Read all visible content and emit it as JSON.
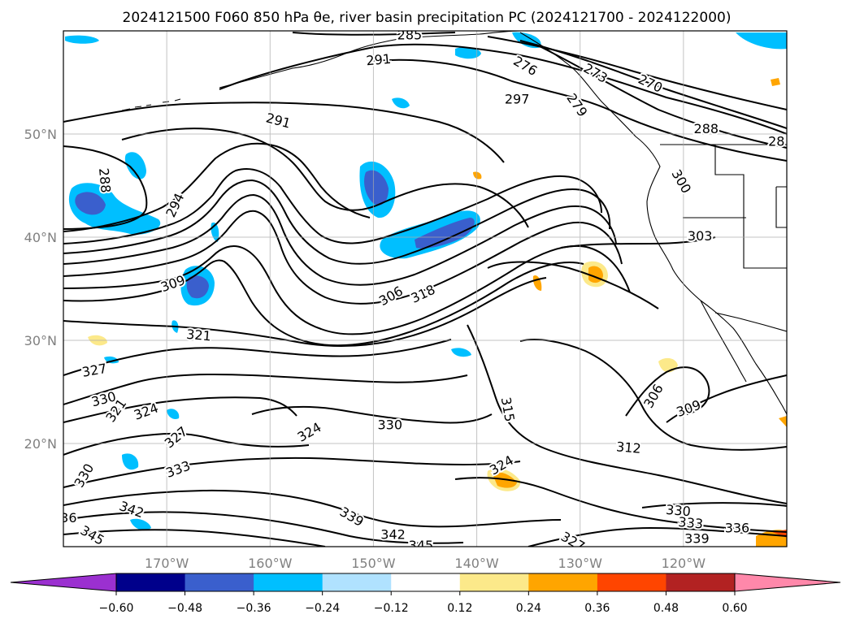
{
  "chart_data": {
    "type": "contour",
    "title": "2024121500 F060 850 hPa θe, river basin precipitation PC (2024121700 - 2024122000)",
    "map_extent": {
      "lon": [
        -180,
        -110
      ],
      "lat": [
        10,
        60
      ]
    },
    "x_ticks": [
      {
        "lon": -170,
        "label": "170°W"
      },
      {
        "lon": -160,
        "label": "160°W"
      },
      {
        "lon": -150,
        "label": "150°W"
      },
      {
        "lon": -140,
        "label": "140°W"
      },
      {
        "lon": -130,
        "label": "130°W"
      },
      {
        "lon": -120,
        "label": "120°W"
      }
    ],
    "y_ticks": [
      {
        "lat": 20,
        "label": "20°N"
      },
      {
        "lat": 30,
        "label": "30°N"
      },
      {
        "lat": 40,
        "label": "40°N"
      },
      {
        "lat": 50,
        "label": "50°N"
      }
    ],
    "grid": true,
    "colorbar": {
      "position": "bottom",
      "extend": "both",
      "levels": [
        -0.6,
        -0.48,
        -0.36,
        -0.24,
        -0.12,
        0.12,
        0.24,
        0.36,
        0.48,
        0.6
      ],
      "labels": [
        "−0.60",
        "−0.48",
        "−0.36",
        "−0.24",
        "−0.12",
        "0.12",
        "0.24",
        "0.36",
        "0.48",
        "0.60"
      ],
      "colors": [
        "#9b30d0",
        "#00008b",
        "#3a5fcd",
        "#00bfff",
        "#b0e2ff",
        "#ffffff",
        "#fce98a",
        "#ffa500",
        "#ff4500",
        "#b22222",
        "#ff88aa"
      ]
    },
    "contour_labels": [
      {
        "text": "285",
        "lon": -146.5,
        "lat": 59.6,
        "rot": 0
      },
      {
        "text": "291",
        "lon": -149.5,
        "lat": 57.2,
        "rot": -5
      },
      {
        "text": "276",
        "lon": -135.3,
        "lat": 56.6,
        "rot": 30
      },
      {
        "text": "273",
        "lon": -128.5,
        "lat": 55.9,
        "rot": 30
      },
      {
        "text": "270",
        "lon": -123.2,
        "lat": 54.9,
        "rot": 25
      },
      {
        "text": "279",
        "lon": -130.3,
        "lat": 52.8,
        "rot": 55
      },
      {
        "text": "297",
        "lon": -136.1,
        "lat": 53.4,
        "rot": 0
      },
      {
        "text": "291",
        "lon": -159.2,
        "lat": 51.3,
        "rot": 15
      },
      {
        "text": "288",
        "lon": -117.8,
        "lat": 50.5,
        "rot": 0
      },
      {
        "text": "28",
        "lon": -111,
        "lat": 49.3,
        "rot": 0
      },
      {
        "text": "288",
        "lon": -176,
        "lat": 45.5,
        "rot": 85
      },
      {
        "text": "294",
        "lon": -169.2,
        "lat": 43.1,
        "rot": -65
      },
      {
        "text": "300",
        "lon": -120.2,
        "lat": 45.4,
        "rot": 60
      },
      {
        "text": "303",
        "lon": -118.4,
        "lat": 40.1,
        "rot": 0
      },
      {
        "text": "309",
        "lon": -169.4,
        "lat": 35.5,
        "rot": -20
      },
      {
        "text": "306",
        "lon": -148.3,
        "lat": 34.3,
        "rot": -30
      },
      {
        "text": "318",
        "lon": -145.2,
        "lat": 34.5,
        "rot": -25
      },
      {
        "text": "321",
        "lon": -166.9,
        "lat": 30.5,
        "rot": 5
      },
      {
        "text": "327",
        "lon": -177,
        "lat": 27.1,
        "rot": -10
      },
      {
        "text": "330",
        "lon": -176.1,
        "lat": 24.3,
        "rot": -15
      },
      {
        "text": "321",
        "lon": -174.9,
        "lat": 23.2,
        "rot": -55
      },
      {
        "text": "324",
        "lon": -172,
        "lat": 23.1,
        "rot": -20
      },
      {
        "text": "306",
        "lon": -122.9,
        "lat": 24.6,
        "rot": -60
      },
      {
        "text": "309",
        "lon": -119.5,
        "lat": 23.4,
        "rot": -20
      },
      {
        "text": "315",
        "lon": -137,
        "lat": 23.3,
        "rot": 80
      },
      {
        "text": "330",
        "lon": -148.4,
        "lat": 21.8,
        "rot": 0
      },
      {
        "text": "324",
        "lon": -156.2,
        "lat": 21.1,
        "rot": -30
      },
      {
        "text": "327",
        "lon": -169.1,
        "lat": 20.6,
        "rot": -40
      },
      {
        "text": "312",
        "lon": -125.3,
        "lat": 19.6,
        "rot": 5
      },
      {
        "text": "330",
        "lon": -178,
        "lat": 16.9,
        "rot": -60
      },
      {
        "text": "333",
        "lon": -168.9,
        "lat": 17.5,
        "rot": -20
      },
      {
        "text": "324",
        "lon": -137.6,
        "lat": 17.9,
        "rot": -30
      },
      {
        "text": "342",
        "lon": -173.4,
        "lat": 13.6,
        "rot": 20
      },
      {
        "text": "339",
        "lon": -152.1,
        "lat": 12.9,
        "rot": 30
      },
      {
        "text": "330",
        "lon": -120.5,
        "lat": 13.5,
        "rot": 5
      },
      {
        "text": "333",
        "lon": -119.3,
        "lat": 12.3,
        "rot": 5
      },
      {
        "text": "336",
        "lon": -114.8,
        "lat": 11.8,
        "rot": 0
      },
      {
        "text": "342",
        "lon": -148.1,
        "lat": 11.2,
        "rot": 0
      },
      {
        "text": "339",
        "lon": -118.7,
        "lat": 10.8,
        "rot": 0
      },
      {
        "text": "345",
        "lon": -177.2,
        "lat": 11.1,
        "rot": 30
      },
      {
        "text": "345",
        "lon": -145.4,
        "lat": 10.1,
        "rot": 0
      },
      {
        "text": "327",
        "lon": -130.7,
        "lat": 10.5,
        "rot": 30
      },
      {
        "text": "36",
        "lon": -179.5,
        "lat": 12.8,
        "rot": 0
      }
    ]
  }
}
